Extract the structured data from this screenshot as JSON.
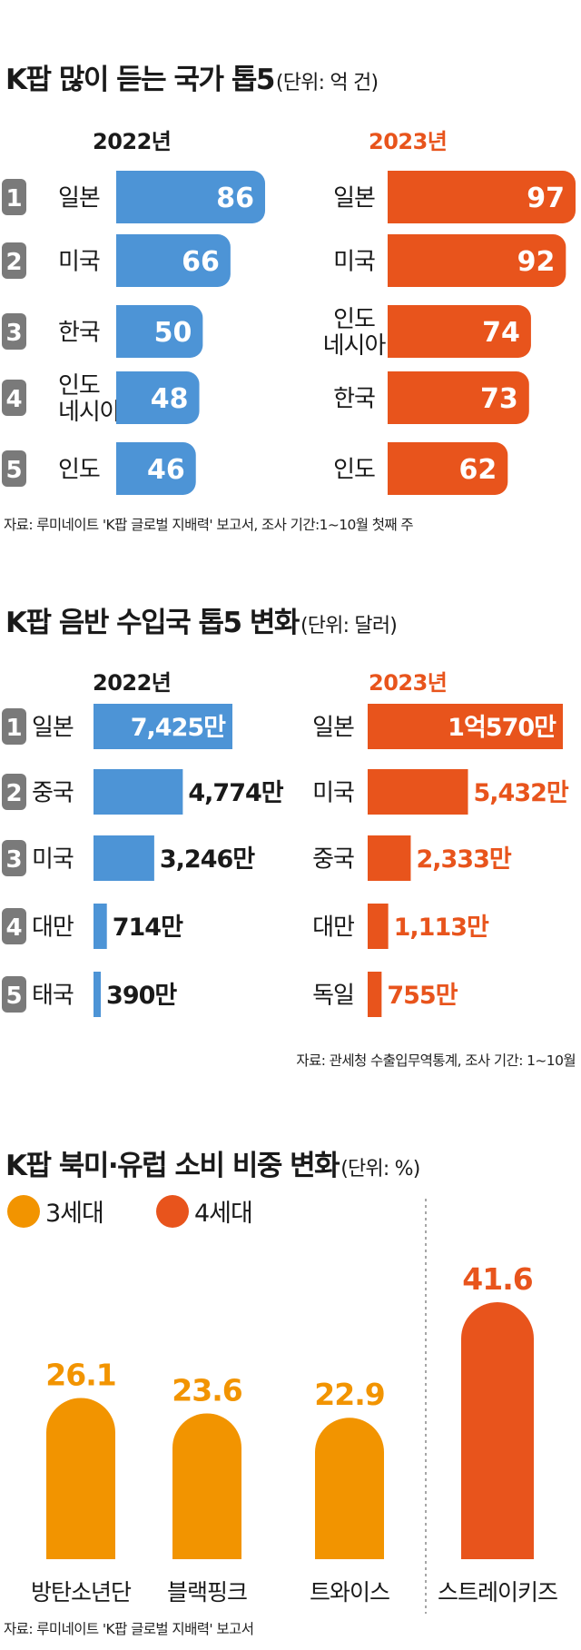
{
  "colors": {
    "c2022": "#4d94d6",
    "c2023": "#e8541c",
    "gen3": "#f29400",
    "gen4": "#e8541c",
    "rank_box": "#7a7a7a"
  },
  "section1": {
    "title": "K팝 많이 듣는 국가 톱5",
    "unit": "(단위: 억 건)",
    "year_2022": "2022년",
    "year_2023": "2023년",
    "source": "자료: 루미네이트 'K팝 글로벌 지배력' 보고서, 조사 기간:1~10월 첫째 주"
  },
  "section2": {
    "title": "K팝 음반 수입국 톱5 변화",
    "unit": "(단위: 달러)",
    "year_2022": "2022년",
    "year_2023": "2023년",
    "source": "자료: 관세청 수출입무역통계, 조사 기간: 1~10월"
  },
  "section3": {
    "title": "K팝 북미·유럽 소비 비중 변화",
    "unit": "(단위: %)",
    "legend_gen3": "3세대",
    "legend_gen4": "4세대",
    "source": "자료: 루미네이트 'K팝 글로벌 지배력' 보고서"
  },
  "chart_data": [
    {
      "type": "bar",
      "title": "K팝 많이 듣는 국가 톱5",
      "unit": "억 건",
      "ranks": [
        "1",
        "2",
        "3",
        "4",
        "5"
      ],
      "series": [
        {
          "name": "2022년",
          "categories": [
            "일본",
            "미국",
            "한국",
            "인도\n네시아",
            "인도"
          ],
          "values": [
            86,
            66,
            50,
            48,
            46
          ],
          "labels": [
            "86",
            "66",
            "50",
            "48",
            "46"
          ]
        },
        {
          "name": "2023년",
          "categories": [
            "일본",
            "미국",
            "인도\n네시아",
            "한국",
            "인도"
          ],
          "values": [
            97,
            92,
            74,
            73,
            62
          ],
          "labels": [
            "97",
            "92",
            "74",
            "73",
            "62"
          ]
        }
      ]
    },
    {
      "type": "bar",
      "title": "K팝 음반 수입국 톱5 변화",
      "unit": "달러",
      "ranks": [
        "1",
        "2",
        "3",
        "4",
        "5"
      ],
      "series": [
        {
          "name": "2022년",
          "categories": [
            "일본",
            "중국",
            "미국",
            "대만",
            "태국"
          ],
          "values": [
            74250000,
            47740000,
            32460000,
            7140000,
            3900000
          ],
          "labels": [
            "7,425만",
            "4,774만",
            "3,246만",
            "714만",
            "390만"
          ]
        },
        {
          "name": "2023년",
          "categories": [
            "일본",
            "미국",
            "중국",
            "대만",
            "독일"
          ],
          "values": [
            105700000,
            54320000,
            23330000,
            11130000,
            7550000
          ],
          "labels": [
            "1억570만",
            "5,432만",
            "2,333만",
            "1,113만",
            "755만"
          ]
        }
      ]
    },
    {
      "type": "bar",
      "title": "K팝 북미·유럽 소비 비중 변화",
      "unit": "%",
      "categories": [
        "방탄소년단",
        "블랙핑크",
        "트와이스",
        "스트레이키즈"
      ],
      "values": [
        26.1,
        23.6,
        22.9,
        41.6
      ],
      "labels": [
        "26.1",
        "23.6",
        "22.9",
        "41.6"
      ],
      "generation": [
        "3세대",
        "3세대",
        "3세대",
        "4세대"
      ]
    }
  ]
}
